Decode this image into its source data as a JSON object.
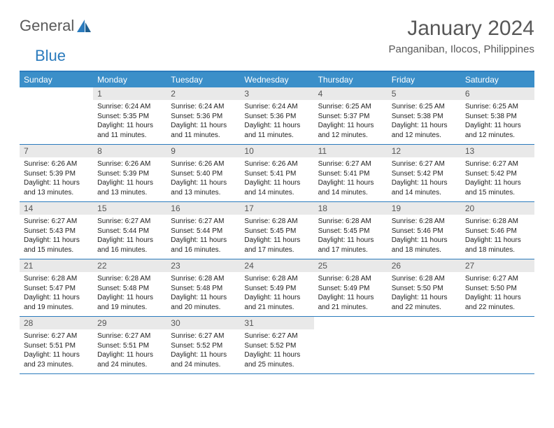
{
  "logo": {
    "text1": "General",
    "text2": "Blue"
  },
  "title": "January 2024",
  "location": "Panganiban, Ilocos, Philippines",
  "colors": {
    "headerBar": "#3b8fc9",
    "borderTop": "#2b7bbd",
    "dayNumBg": "#e9e9e9",
    "textGray": "#585858"
  },
  "dayNames": [
    "Sunday",
    "Monday",
    "Tuesday",
    "Wednesday",
    "Thursday",
    "Friday",
    "Saturday"
  ],
  "weeks": [
    [
      {
        "n": "",
        "sr": "",
        "ss": "",
        "dl": ""
      },
      {
        "n": "1",
        "sr": "Sunrise: 6:24 AM",
        "ss": "Sunset: 5:35 PM",
        "dl": "Daylight: 11 hours and 11 minutes."
      },
      {
        "n": "2",
        "sr": "Sunrise: 6:24 AM",
        "ss": "Sunset: 5:36 PM",
        "dl": "Daylight: 11 hours and 11 minutes."
      },
      {
        "n": "3",
        "sr": "Sunrise: 6:24 AM",
        "ss": "Sunset: 5:36 PM",
        "dl": "Daylight: 11 hours and 11 minutes."
      },
      {
        "n": "4",
        "sr": "Sunrise: 6:25 AM",
        "ss": "Sunset: 5:37 PM",
        "dl": "Daylight: 11 hours and 12 minutes."
      },
      {
        "n": "5",
        "sr": "Sunrise: 6:25 AM",
        "ss": "Sunset: 5:38 PM",
        "dl": "Daylight: 11 hours and 12 minutes."
      },
      {
        "n": "6",
        "sr": "Sunrise: 6:25 AM",
        "ss": "Sunset: 5:38 PM",
        "dl": "Daylight: 11 hours and 12 minutes."
      }
    ],
    [
      {
        "n": "7",
        "sr": "Sunrise: 6:26 AM",
        "ss": "Sunset: 5:39 PM",
        "dl": "Daylight: 11 hours and 13 minutes."
      },
      {
        "n": "8",
        "sr": "Sunrise: 6:26 AM",
        "ss": "Sunset: 5:39 PM",
        "dl": "Daylight: 11 hours and 13 minutes."
      },
      {
        "n": "9",
        "sr": "Sunrise: 6:26 AM",
        "ss": "Sunset: 5:40 PM",
        "dl": "Daylight: 11 hours and 13 minutes."
      },
      {
        "n": "10",
        "sr": "Sunrise: 6:26 AM",
        "ss": "Sunset: 5:41 PM",
        "dl": "Daylight: 11 hours and 14 minutes."
      },
      {
        "n": "11",
        "sr": "Sunrise: 6:27 AM",
        "ss": "Sunset: 5:41 PM",
        "dl": "Daylight: 11 hours and 14 minutes."
      },
      {
        "n": "12",
        "sr": "Sunrise: 6:27 AM",
        "ss": "Sunset: 5:42 PM",
        "dl": "Daylight: 11 hours and 14 minutes."
      },
      {
        "n": "13",
        "sr": "Sunrise: 6:27 AM",
        "ss": "Sunset: 5:42 PM",
        "dl": "Daylight: 11 hours and 15 minutes."
      }
    ],
    [
      {
        "n": "14",
        "sr": "Sunrise: 6:27 AM",
        "ss": "Sunset: 5:43 PM",
        "dl": "Daylight: 11 hours and 15 minutes."
      },
      {
        "n": "15",
        "sr": "Sunrise: 6:27 AM",
        "ss": "Sunset: 5:44 PM",
        "dl": "Daylight: 11 hours and 16 minutes."
      },
      {
        "n": "16",
        "sr": "Sunrise: 6:27 AM",
        "ss": "Sunset: 5:44 PM",
        "dl": "Daylight: 11 hours and 16 minutes."
      },
      {
        "n": "17",
        "sr": "Sunrise: 6:28 AM",
        "ss": "Sunset: 5:45 PM",
        "dl": "Daylight: 11 hours and 17 minutes."
      },
      {
        "n": "18",
        "sr": "Sunrise: 6:28 AM",
        "ss": "Sunset: 5:45 PM",
        "dl": "Daylight: 11 hours and 17 minutes."
      },
      {
        "n": "19",
        "sr": "Sunrise: 6:28 AM",
        "ss": "Sunset: 5:46 PM",
        "dl": "Daylight: 11 hours and 18 minutes."
      },
      {
        "n": "20",
        "sr": "Sunrise: 6:28 AM",
        "ss": "Sunset: 5:46 PM",
        "dl": "Daylight: 11 hours and 18 minutes."
      }
    ],
    [
      {
        "n": "21",
        "sr": "Sunrise: 6:28 AM",
        "ss": "Sunset: 5:47 PM",
        "dl": "Daylight: 11 hours and 19 minutes."
      },
      {
        "n": "22",
        "sr": "Sunrise: 6:28 AM",
        "ss": "Sunset: 5:48 PM",
        "dl": "Daylight: 11 hours and 19 minutes."
      },
      {
        "n": "23",
        "sr": "Sunrise: 6:28 AM",
        "ss": "Sunset: 5:48 PM",
        "dl": "Daylight: 11 hours and 20 minutes."
      },
      {
        "n": "24",
        "sr": "Sunrise: 6:28 AM",
        "ss": "Sunset: 5:49 PM",
        "dl": "Daylight: 11 hours and 21 minutes."
      },
      {
        "n": "25",
        "sr": "Sunrise: 6:28 AM",
        "ss": "Sunset: 5:49 PM",
        "dl": "Daylight: 11 hours and 21 minutes."
      },
      {
        "n": "26",
        "sr": "Sunrise: 6:28 AM",
        "ss": "Sunset: 5:50 PM",
        "dl": "Daylight: 11 hours and 22 minutes."
      },
      {
        "n": "27",
        "sr": "Sunrise: 6:27 AM",
        "ss": "Sunset: 5:50 PM",
        "dl": "Daylight: 11 hours and 22 minutes."
      }
    ],
    [
      {
        "n": "28",
        "sr": "Sunrise: 6:27 AM",
        "ss": "Sunset: 5:51 PM",
        "dl": "Daylight: 11 hours and 23 minutes."
      },
      {
        "n": "29",
        "sr": "Sunrise: 6:27 AM",
        "ss": "Sunset: 5:51 PM",
        "dl": "Daylight: 11 hours and 24 minutes."
      },
      {
        "n": "30",
        "sr": "Sunrise: 6:27 AM",
        "ss": "Sunset: 5:52 PM",
        "dl": "Daylight: 11 hours and 24 minutes."
      },
      {
        "n": "31",
        "sr": "Sunrise: 6:27 AM",
        "ss": "Sunset: 5:52 PM",
        "dl": "Daylight: 11 hours and 25 minutes."
      },
      {
        "n": "",
        "sr": "",
        "ss": "",
        "dl": ""
      },
      {
        "n": "",
        "sr": "",
        "ss": "",
        "dl": ""
      },
      {
        "n": "",
        "sr": "",
        "ss": "",
        "dl": ""
      }
    ]
  ]
}
